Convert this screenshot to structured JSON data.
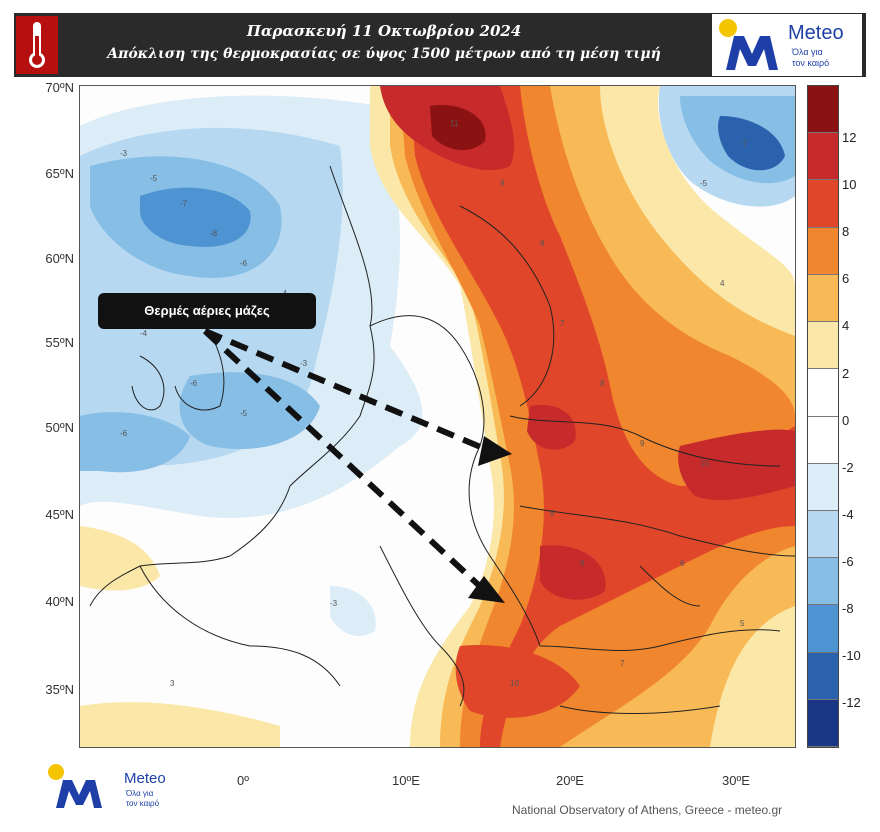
{
  "header": {
    "line1": "Παρασκευή 11 Οκτωβρίου 2024",
    "line2": "Απόκλιση της θερμοκρασίας σε ύψος 1500 μέτρων από τη μέση τιμή",
    "thermometer_icon": "thermometer-icon"
  },
  "logo": {
    "name": "Meteo",
    "tagline1": "Όλα για",
    "tagline2": "τον καιρό"
  },
  "footer": {
    "logo_name": "Meteo",
    "tagline1": "Όλα για",
    "tagline2": "τον καιρό",
    "credit": "National Observatory of Athens, Greece - meteo.gr"
  },
  "map": {
    "latitude_labels": [
      "70ºN",
      "65ºN",
      "60ºN",
      "55ºN",
      "50ºN",
      "45ºN",
      "40ºN",
      "35ºN"
    ],
    "longitude_labels": [
      "0º",
      "10ºE",
      "20ºE",
      "30ºE"
    ],
    "annotation": "Θερμές αέριες μάζες",
    "arrow_icon": "dashed-arrow-icon"
  },
  "colorbar": {
    "labels": [
      "12",
      "10",
      "8",
      "6",
      "4",
      "2",
      "0",
      "-2",
      "-4",
      "-6",
      "-8",
      "-10",
      "-12"
    ],
    "colors": [
      "#8b1212",
      "#c62a2a",
      "#e0472a",
      "#f0862e",
      "#f8ba57",
      "#fbe8a8",
      "#ffffff",
      "#ffffff",
      "#dcedf8",
      "#b6d8f1",
      "#86bee6",
      "#4f94d2",
      "#2b62ad",
      "#1a3785"
    ]
  }
}
